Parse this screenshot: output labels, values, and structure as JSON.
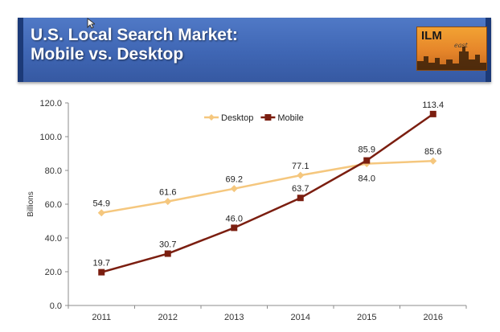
{
  "header": {
    "title_line1": "U.S. Local Search Market:",
    "title_line2": "Mobile vs. Desktop",
    "logo_text": "ILM",
    "logo_sub": "east",
    "banner_color": "#4470c0"
  },
  "chart_data": {
    "type": "line",
    "categories": [
      "2011",
      "2012",
      "2013",
      "2014",
      "2015",
      "2016"
    ],
    "series": [
      {
        "name": "Desktop",
        "values": [
          54.9,
          61.6,
          69.2,
          77.1,
          84.0,
          85.6
        ],
        "labels": [
          "54.9",
          "61.6",
          "69.2",
          "77.1",
          "84.0",
          "85.6"
        ],
        "color": "#f5c77e",
        "marker": "diamond"
      },
      {
        "name": "Mobile",
        "values": [
          19.7,
          30.7,
          46.0,
          63.7,
          85.9,
          113.4
        ],
        "labels": [
          "19.7",
          "30.7",
          "46.0",
          "63.7",
          "85.9",
          "113.4"
        ],
        "color": "#7b1e10",
        "marker": "square"
      }
    ],
    "yticks": [
      "0.0",
      "20.0",
      "40.0",
      "60.0",
      "80.0",
      "100.0",
      "120.0"
    ],
    "ylim": [
      0,
      120
    ],
    "ylabel": "Billions",
    "xlabel": "",
    "legend_position": "top-center",
    "grid": false
  }
}
